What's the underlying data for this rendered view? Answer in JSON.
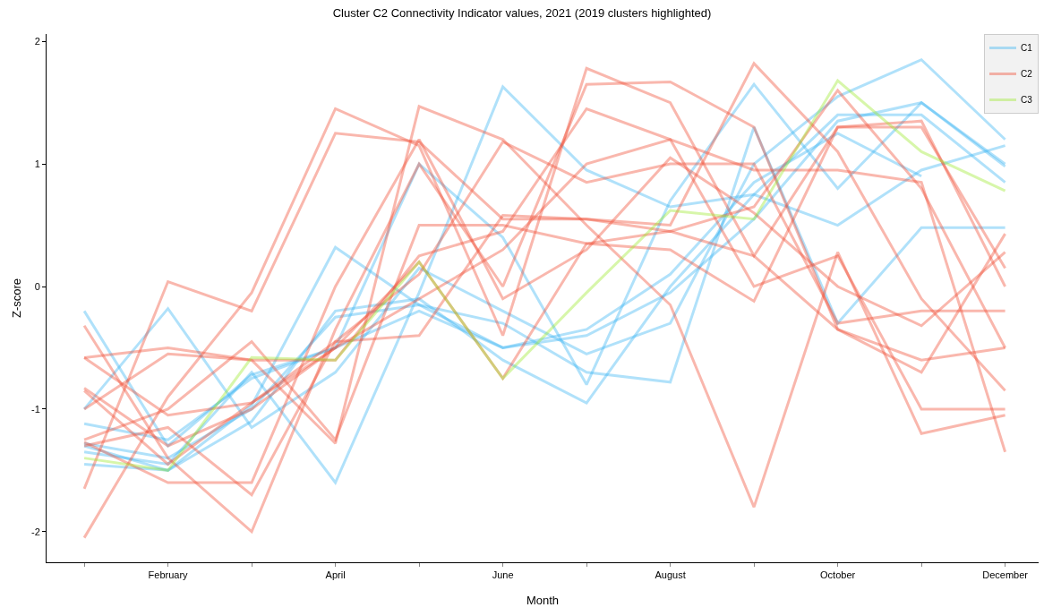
{
  "chart_data": {
    "type": "line",
    "title": "Cluster C2 Connectivity Indicator values, 2021 (2019 clusters highlighted)",
    "xlabel": "Month",
    "ylabel": "Z-score",
    "categories": [
      null,
      "February",
      null,
      "April",
      null,
      "June",
      null,
      "August",
      null,
      "October",
      null,
      "December"
    ],
    "ylim": [
      -2.25,
      2.06
    ],
    "yticks": [
      -2,
      -1,
      0,
      1,
      2
    ],
    "grid": false,
    "legend": "top right",
    "marker": "none",
    "line_style": "solid",
    "series": [
      {
        "name": "C1",
        "color": "#3ab4f2",
        "values": [
          -0.2,
          -1.3,
          -0.72,
          -0.5,
          1.0,
          0.4,
          -0.8,
          0.7,
          1.65,
          0.8,
          1.5,
          1.0
        ]
      },
      {
        "color": "#3ab4f2",
        "values": [
          -1.0,
          -0.18,
          -1.15,
          -0.7,
          0.15,
          -0.2,
          -0.55,
          -0.3,
          1.0,
          1.55,
          1.85,
          1.2
        ]
      },
      {
        "color": "#3ab4f2",
        "values": [
          -1.12,
          -1.25,
          -0.75,
          -0.5,
          -0.2,
          -0.5,
          -0.35,
          0.1,
          0.85,
          1.25,
          0.9,
          null
        ]
      },
      {
        "color": "#3ab4f2",
        "values": [
          -1.3,
          -1.5,
          -1.1,
          -0.2,
          -0.1,
          -0.6,
          -0.95,
          0.0,
          0.75,
          0.5,
          0.95,
          1.15
        ]
      },
      {
        "color": "#3ab4f2",
        "values": [
          -1.35,
          -1.45,
          -0.7,
          -1.6,
          -0.05,
          1.63,
          0.95,
          0.65,
          0.75,
          1.4,
          1.4,
          0.85
        ]
      },
      {
        "color": "#3ab4f2",
        "values": [
          -1.45,
          -1.5,
          -0.97,
          0.32,
          -0.15,
          -0.3,
          -0.7,
          -0.78,
          1.3,
          -0.3,
          0.48,
          0.48
        ]
      },
      {
        "color": "#3ab4f2",
        "values": [
          -1.28,
          -1.4,
          -1.0,
          -0.25,
          -0.15,
          -0.5,
          -0.4,
          -0.05,
          0.55,
          1.35,
          1.5,
          0.98
        ]
      },
      {
        "name": "C2",
        "color": "#f04a32",
        "values": [
          -2.05,
          -0.9,
          -0.05,
          1.45,
          1.15,
          -0.4,
          1.78,
          1.5,
          0.25,
          1.3,
          1.35,
          0.0
        ]
      },
      {
        "color": "#f04a32",
        "values": [
          -1.65,
          0.04,
          -0.2,
          1.25,
          1.18,
          0.55,
          0.55,
          0.5,
          1.82,
          1.1,
          -0.1,
          -0.85
        ]
      },
      {
        "color": "#f04a32",
        "values": [
          -0.58,
          -0.5,
          -0.6,
          -1.28,
          1.47,
          1.2,
          0.5,
          -0.15,
          -1.8,
          0.28,
          -1.2,
          -1.05
        ]
      },
      {
        "color": "#f04a32",
        "values": [
          -0.32,
          -1.4,
          -2.0,
          -0.35,
          1.0,
          0.0,
          1.65,
          1.67,
          1.3,
          -0.35,
          -0.6,
          -0.5
        ]
      },
      {
        "color": "#f04a32",
        "values": [
          -0.83,
          -1.3,
          -1.0,
          -0.5,
          0.2,
          -0.75,
          0.35,
          0.45,
          0.25,
          -0.35,
          -0.7,
          0.43
        ]
      },
      {
        "color": "#f04a32",
        "values": [
          -1.27,
          -1.6,
          -1.6,
          0.0,
          1.2,
          -0.1,
          0.3,
          1.05,
          0.6,
          0.0,
          -0.32,
          0.28
        ]
      },
      {
        "color": "#f04a32",
        "values": [
          -0.58,
          -1.05,
          -0.95,
          -0.45,
          -0.4,
          0.58,
          0.55,
          0.45,
          0.65,
          1.6,
          0.8,
          -0.5
        ]
      },
      {
        "color": "#f04a32",
        "values": [
          -1.3,
          -1.15,
          -1.7,
          -0.45,
          0.1,
          1.18,
          0.85,
          1.0,
          1.0,
          -0.3,
          -0.2,
          -0.2
        ]
      },
      {
        "color": "#f04a32",
        "values": [
          -0.85,
          -1.45,
          -0.95,
          -0.5,
          -0.1,
          0.3,
          1.0,
          1.2,
          0.95,
          0.95,
          0.85,
          -1.35
        ]
      },
      {
        "color": "#f04a32",
        "values": [
          -1.0,
          -0.55,
          -0.6,
          -0.6,
          0.25,
          0.45,
          1.45,
          1.2,
          0.0,
          0.25,
          -1.0,
          -1.0
        ]
      },
      {
        "color": "#f04a32",
        "values": [
          -1.25,
          -1.0,
          -0.45,
          -1.25,
          0.5,
          0.5,
          0.35,
          0.3,
          -0.12,
          1.3,
          1.3,
          0.15
        ]
      },
      {
        "name": "C3",
        "color": "#9be82a",
        "values": [
          -1.4,
          -1.5,
          -0.58,
          -0.6,
          0.2,
          -0.75,
          -0.05,
          0.62,
          0.55,
          1.68,
          1.1,
          0.78
        ]
      }
    ]
  }
}
